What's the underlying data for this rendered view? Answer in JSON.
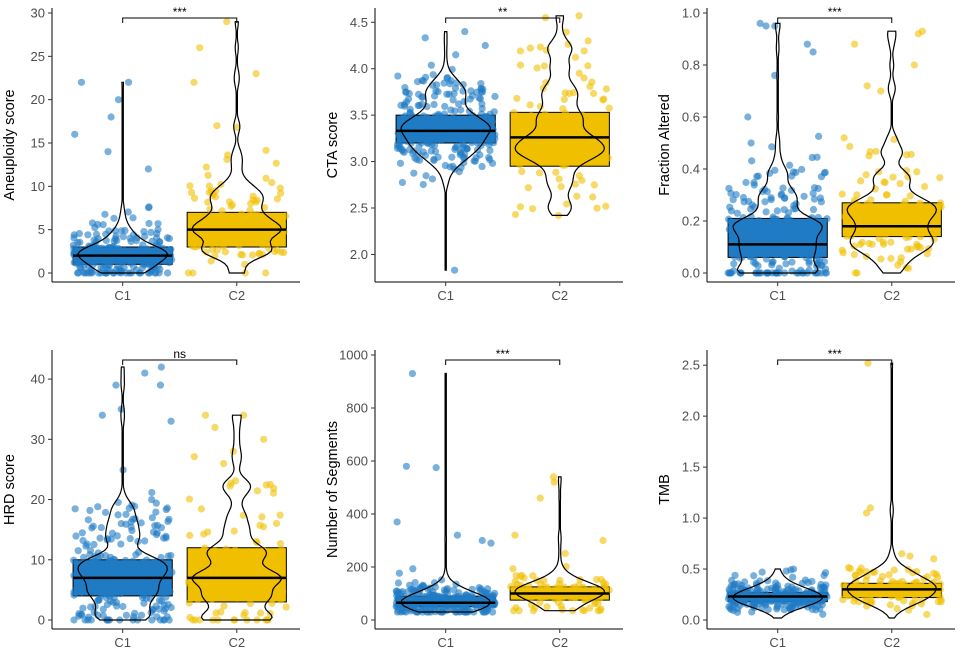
{
  "colors": {
    "C1": "#1f7bc4",
    "C2": "#f0c000"
  },
  "groups": [
    "C1",
    "C2"
  ],
  "chart_data": [
    {
      "type": "box-violin-jitter",
      "ylabel": "Aneuploidy score",
      "ylim": [
        0,
        30
      ],
      "yticks": [
        "0",
        "5",
        "10",
        "15",
        "20",
        "25",
        "30"
      ],
      "yticks_values": [
        0,
        5,
        10,
        15,
        20,
        25,
        30
      ],
      "significance": "***",
      "series": [
        {
          "name": "C1",
          "box": {
            "q1": 1,
            "median": 2,
            "q3": 3
          },
          "range": [
            0,
            22
          ],
          "n": 260,
          "outliers": [
            22,
            22,
            20,
            18,
            16,
            14,
            12
          ]
        },
        {
          "name": "C2",
          "box": {
            "q1": 3,
            "median": 5,
            "q3": 7
          },
          "range": [
            0,
            29
          ],
          "n": 110,
          "outliers": [
            29,
            26,
            23,
            22,
            17
          ]
        }
      ]
    },
    {
      "type": "box-violin-jitter",
      "ylabel": "CTA score",
      "ylim": [
        1.8,
        4.6
      ],
      "yticks": [
        "2.0",
        "2.5",
        "3.0",
        "3.5",
        "4.0",
        "4.5"
      ],
      "yticks_values": [
        2.0,
        2.5,
        3.0,
        3.5,
        4.0,
        4.5
      ],
      "significance": "**",
      "series": [
        {
          "name": "C1",
          "box": {
            "q1": 3.2,
            "median": 3.33,
            "q3": 3.5
          },
          "range": [
            1.83,
            4.4
          ],
          "n": 260,
          "outliers": [
            1.83,
            4.4,
            4.25,
            4.15
          ]
        },
        {
          "name": "C2",
          "box": {
            "q1": 2.95,
            "median": 3.26,
            "q3": 3.53
          },
          "range": [
            2.42,
            4.57
          ],
          "n": 110,
          "outliers": [
            4.57,
            4.55,
            4.2,
            2.43
          ]
        }
      ]
    },
    {
      "type": "box-violin-jitter",
      "ylabel": "Fraction Altered",
      "ylim": [
        0,
        1.0
      ],
      "yticks": [
        "0.0",
        "0.2",
        "0.4",
        "0.6",
        "0.8",
        "1.0"
      ],
      "yticks_values": [
        0,
        0.2,
        0.4,
        0.6,
        0.8,
        1.0
      ],
      "significance": "***",
      "series": [
        {
          "name": "C1",
          "box": {
            "q1": 0.06,
            "median": 0.11,
            "q3": 0.21
          },
          "range": [
            0,
            0.96
          ],
          "n": 260,
          "outliers": [
            0.96,
            0.95,
            0.95,
            0.88,
            0.85,
            0.76,
            0.6,
            0.5
          ]
        },
        {
          "name": "C2",
          "box": {
            "q1": 0.14,
            "median": 0.18,
            "q3": 0.27
          },
          "range": [
            0,
            0.93
          ],
          "n": 110,
          "outliers": [
            0.93,
            0.92,
            0.88,
            0.8,
            0.72,
            0.7
          ]
        }
      ]
    },
    {
      "type": "box-violin-jitter",
      "ylabel": "HRD score",
      "ylim": [
        0,
        44
      ],
      "yticks": [
        "0",
        "10",
        "20",
        "30",
        "40"
      ],
      "yticks_values": [
        0,
        10,
        20,
        30,
        40
      ],
      "significance": "ns",
      "series": [
        {
          "name": "C1",
          "box": {
            "q1": 4,
            "median": 7,
            "q3": 10
          },
          "range": [
            0,
            42
          ],
          "n": 260,
          "outliers": [
            42,
            41,
            39,
            39,
            35,
            34,
            33
          ]
        },
        {
          "name": "C2",
          "box": {
            "q1": 3,
            "median": 7,
            "q3": 12
          },
          "range": [
            0,
            34
          ],
          "n": 110,
          "outliers": [
            34,
            34,
            30,
            28
          ]
        }
      ]
    },
    {
      "type": "box-violin-jitter",
      "ylabel": "Number of Segments",
      "ylim": [
        0,
        1000
      ],
      "yticks": [
        "0",
        "200",
        "400",
        "600",
        "800",
        "1000"
      ],
      "yticks_values": [
        0,
        200,
        400,
        600,
        800,
        1000
      ],
      "significance": "***",
      "series": [
        {
          "name": "C1",
          "box": {
            "q1": 50,
            "median": 65,
            "q3": 90
          },
          "range": [
            30,
            930
          ],
          "n": 260,
          "outliers": [
            930,
            580,
            575,
            370,
            320,
            300,
            290
          ]
        },
        {
          "name": "C2",
          "box": {
            "q1": 75,
            "median": 100,
            "q3": 125
          },
          "range": [
            35,
            540
          ],
          "n": 110,
          "outliers": [
            540,
            520,
            460,
            320,
            300
          ]
        }
      ]
    },
    {
      "type": "box-violin-jitter",
      "ylabel": "TMB",
      "ylim": [
        0,
        2.6
      ],
      "yticks": [
        "0.0",
        "0.5",
        "1.0",
        "1.5",
        "2.0",
        "2.5"
      ],
      "yticks_values": [
        0,
        0.5,
        1.0,
        1.5,
        2.0,
        2.5
      ],
      "significance": "***",
      "series": [
        {
          "name": "C1",
          "box": {
            "q1": 0.18,
            "median": 0.23,
            "q3": 0.27
          },
          "range": [
            0.02,
            0.5
          ],
          "n": 260,
          "outliers": [
            0.5,
            0.48
          ]
        },
        {
          "name": "C2",
          "box": {
            "q1": 0.22,
            "median": 0.3,
            "q3": 0.36
          },
          "range": [
            0.02,
            2.52
          ],
          "n": 110,
          "outliers": [
            2.52,
            1.1,
            1.05,
            0.6
          ]
        }
      ]
    }
  ]
}
